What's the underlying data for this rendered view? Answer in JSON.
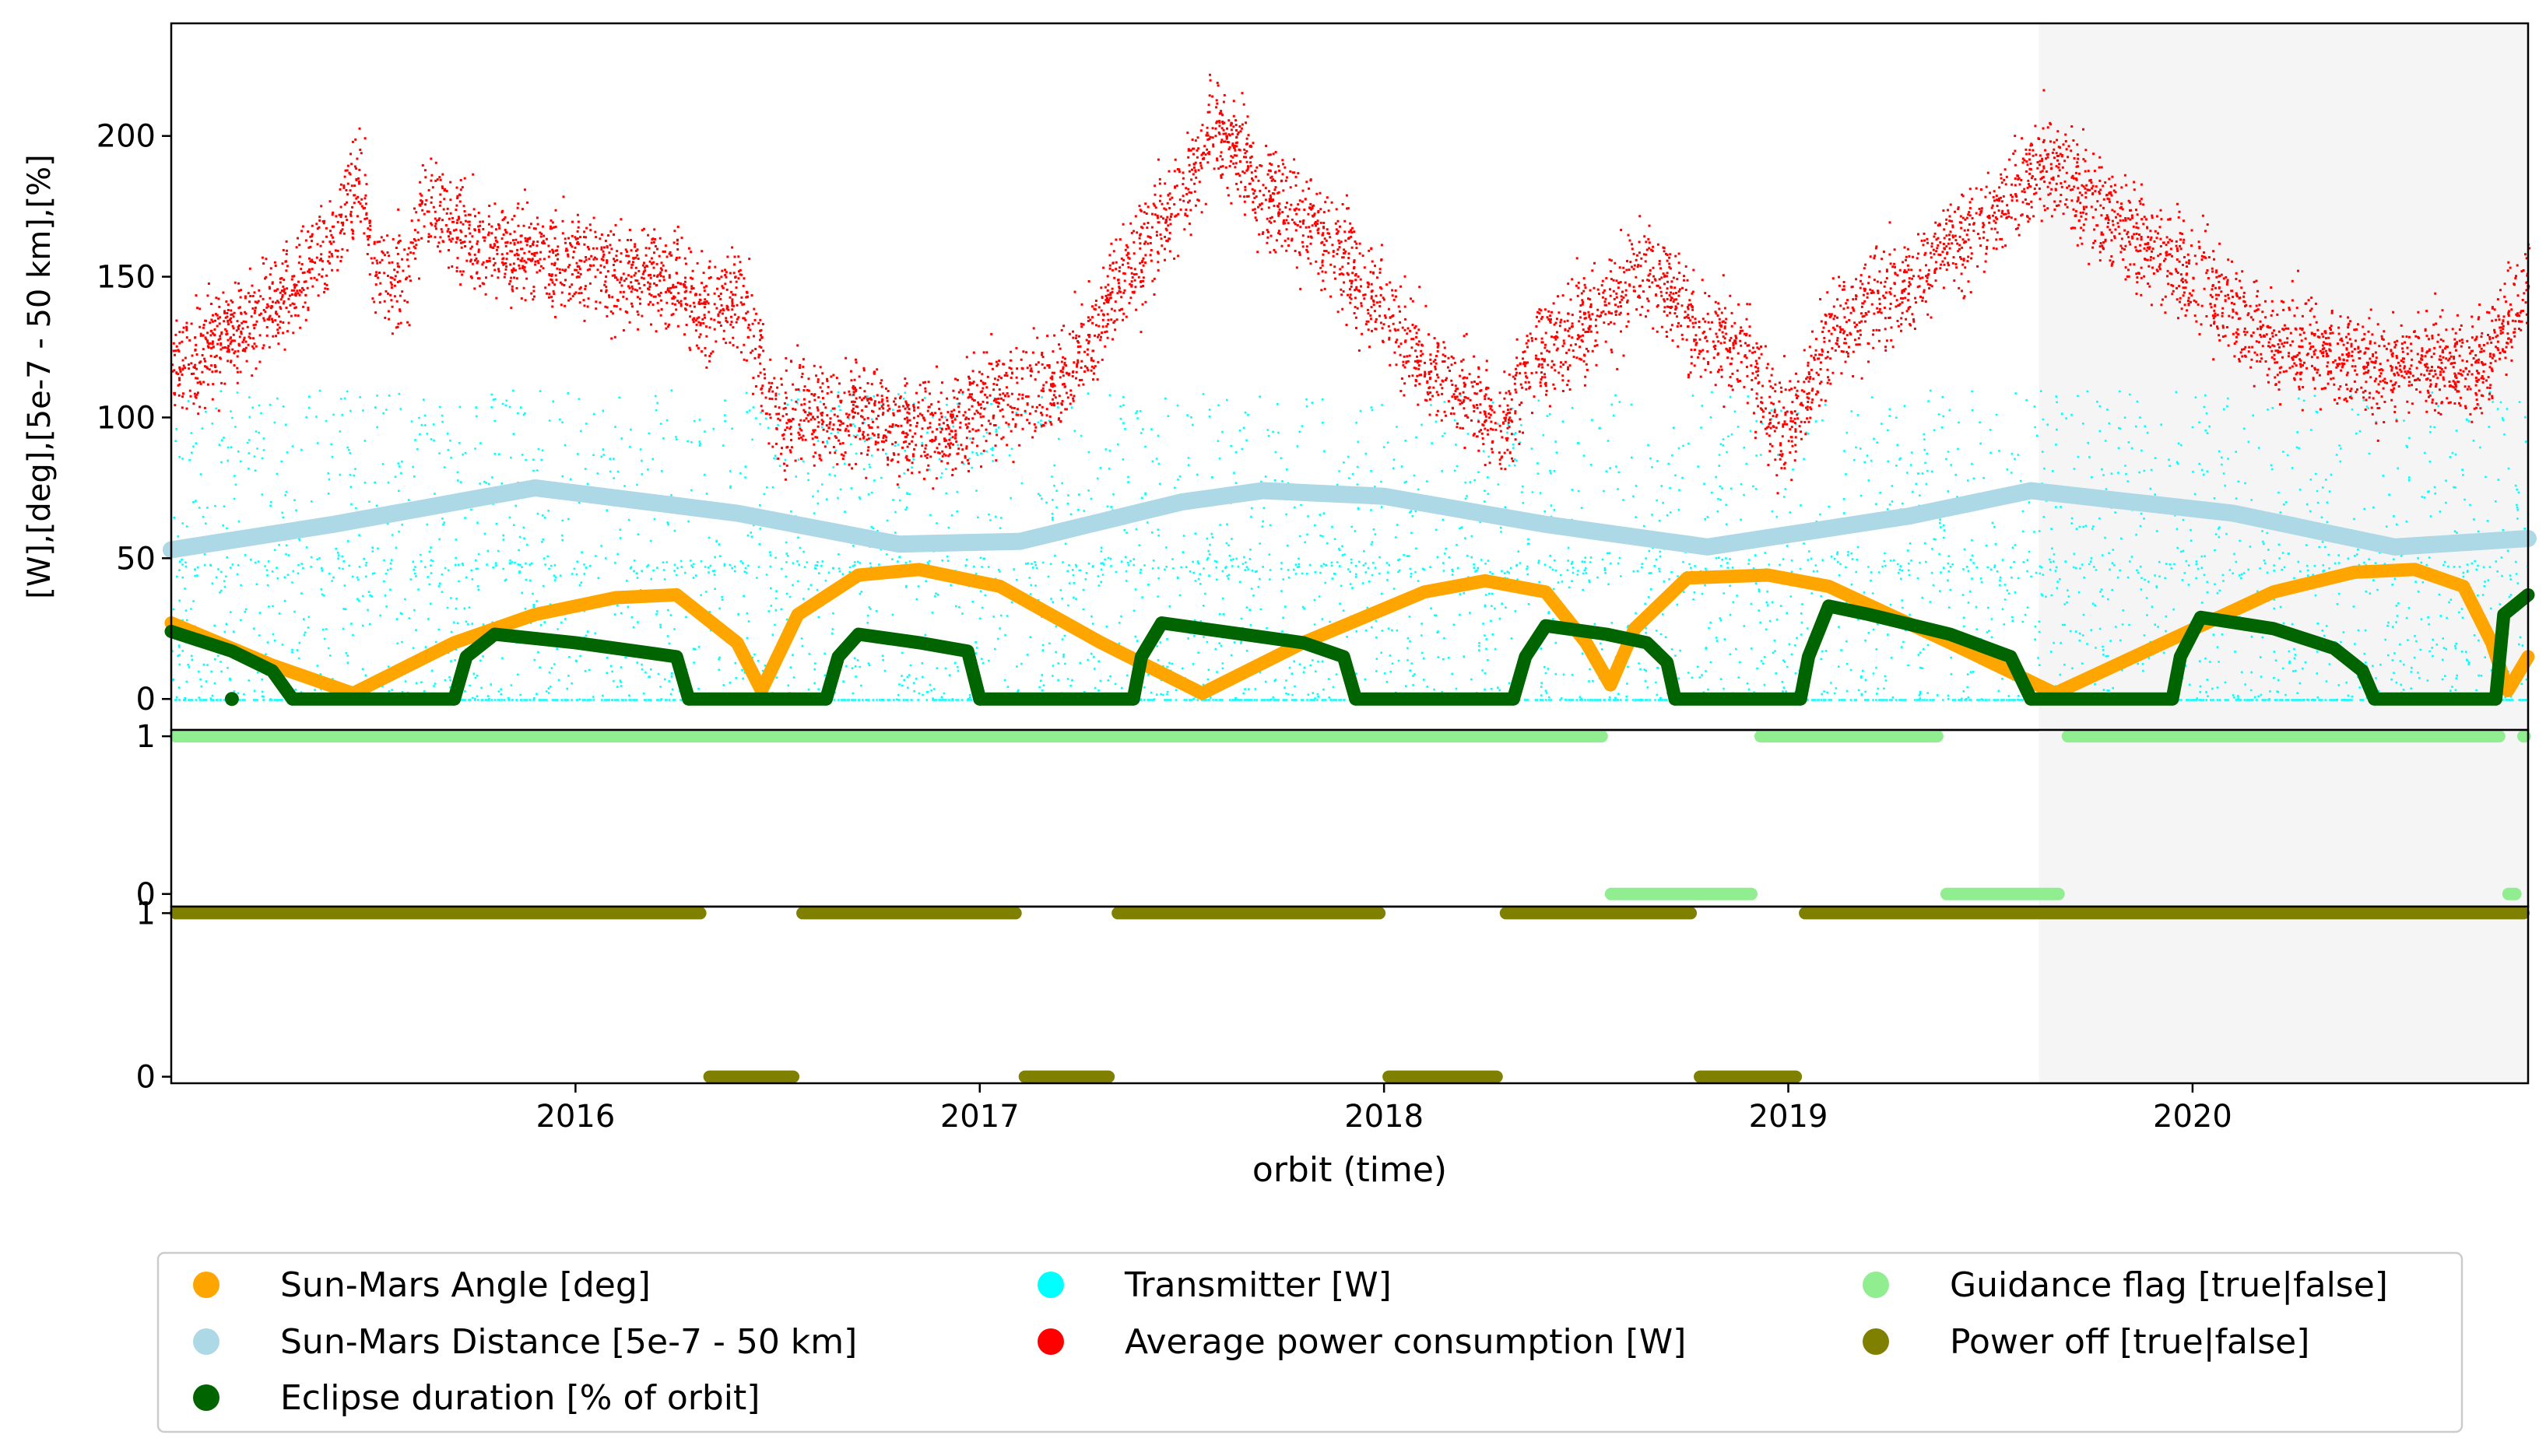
{
  "chart_data": {
    "type": "scatter",
    "x_ticks": [
      "2016",
      "2017",
      "2018",
      "2019",
      "2020"
    ],
    "x_range": [
      2015.0,
      2020.83
    ],
    "xlabel": "orbit (time)",
    "shaded_region": {
      "x_start": 2019.62,
      "x_end": 2020.83,
      "color": "#f5f5f5"
    },
    "panels": [
      {
        "id": "main",
        "ylabel": "[W],[deg],[5e-7 - 50 km],[%]",
        "ylim": [
          -11,
          240
        ],
        "y_ticks": [
          "0",
          "50",
          "100",
          "150",
          "200"
        ],
        "series": [
          {
            "name": "Transmitter [W]",
            "color": "#00ffff",
            "marker": "small-scatter",
            "description_stats": {
              "baseline": 0,
              "typical_range": [
                0,
                110
              ],
              "dense_band": 47
            }
          },
          {
            "name": "Average power consumption [W]",
            "color": "#ff0000",
            "marker": "small-scatter",
            "points": [
              [
                2015.0,
                118
              ],
              [
                2015.15,
                130
              ],
              [
                2015.3,
                145
              ],
              [
                2015.42,
                172
              ],
              [
                2015.47,
                185
              ],
              [
                2015.5,
                148
              ],
              [
                2015.58,
                150
              ],
              [
                2015.62,
                180
              ],
              [
                2015.75,
                162
              ],
              [
                2016.0,
                155
              ],
              [
                2016.25,
                148
              ],
              [
                2016.3,
                140
              ],
              [
                2016.4,
                145
              ],
              [
                2016.5,
                100
              ],
              [
                2016.7,
                102
              ],
              [
                2016.9,
                95
              ],
              [
                2017.05,
                110
              ],
              [
                2017.2,
                112
              ],
              [
                2017.35,
                150
              ],
              [
                2017.5,
                180
              ],
              [
                2017.58,
                205
              ],
              [
                2017.7,
                180
              ],
              [
                2017.85,
                165
              ],
              [
                2017.95,
                145
              ],
              [
                2018.1,
                120
              ],
              [
                2018.3,
                95
              ],
              [
                2018.35,
                120
              ],
              [
                2018.5,
                135
              ],
              [
                2018.65,
                155
              ],
              [
                2018.75,
                135
              ],
              [
                2018.9,
                125
              ],
              [
                2018.97,
                95
              ],
              [
                2019.02,
                100
              ],
              [
                2019.1,
                130
              ],
              [
                2019.3,
                150
              ],
              [
                2019.5,
                172
              ],
              [
                2019.62,
                192
              ],
              [
                2019.8,
                170
              ],
              [
                2020.0,
                150
              ],
              [
                2020.2,
                128
              ],
              [
                2020.4,
                120
              ],
              [
                2020.55,
                118
              ],
              [
                2020.72,
                120
              ],
              [
                2020.83,
                148
              ]
            ]
          },
          {
            "name": "Sun-Mars Distance [5e-7 - 50 km]",
            "color": "#add8e6",
            "marker": "thick-line",
            "points": [
              [
                2015.0,
                53
              ],
              [
                2015.4,
                62
              ],
              [
                2015.9,
                75
              ],
              [
                2016.4,
                66
              ],
              [
                2016.8,
                55
              ],
              [
                2017.1,
                56
              ],
              [
                2017.5,
                70
              ],
              [
                2017.7,
                74
              ],
              [
                2018.0,
                72
              ],
              [
                2018.4,
                62
              ],
              [
                2018.8,
                54
              ],
              [
                2019.3,
                65
              ],
              [
                2019.6,
                74
              ],
              [
                2020.1,
                66
              ],
              [
                2020.5,
                54
              ],
              [
                2020.83,
                57
              ]
            ]
          },
          {
            "name": "Sun-Mars Angle [deg]",
            "color": "#ffa500",
            "marker": "thick-line",
            "points": [
              [
                2015.0,
                27
              ],
              [
                2015.25,
                12
              ],
              [
                2015.45,
                2
              ],
              [
                2015.7,
                20
              ],
              [
                2015.9,
                30
              ],
              [
                2016.1,
                36
              ],
              [
                2016.25,
                37
              ],
              [
                2016.4,
                20
              ],
              [
                2016.46,
                3
              ],
              [
                2016.55,
                30
              ],
              [
                2016.7,
                44
              ],
              [
                2016.85,
                46
              ],
              [
                2017.05,
                40
              ],
              [
                2017.3,
                20
              ],
              [
                2017.55,
                2
              ],
              [
                2017.8,
                20
              ],
              [
                2018.1,
                38
              ],
              [
                2018.25,
                42
              ],
              [
                2018.4,
                38
              ],
              [
                2018.5,
                20
              ],
              [
                2018.56,
                5
              ],
              [
                2018.62,
                25
              ],
              [
                2018.75,
                43
              ],
              [
                2018.95,
                44
              ],
              [
                2019.1,
                40
              ],
              [
                2019.4,
                20
              ],
              [
                2019.66,
                2
              ],
              [
                2019.9,
                18
              ],
              [
                2020.2,
                38
              ],
              [
                2020.4,
                45
              ],
              [
                2020.55,
                46
              ],
              [
                2020.67,
                40
              ],
              [
                2020.74,
                20
              ],
              [
                2020.78,
                3
              ],
              [
                2020.83,
                15
              ]
            ]
          },
          {
            "name": "Eclipse duration [% of orbit]",
            "color": "#006400",
            "marker": "thick-line",
            "segments": [
              [
                [
                  2015.0,
                  24
                ],
                [
                  2015.15,
                  17
                ],
                [
                  2015.25,
                  10
                ],
                [
                  2015.3,
                  0
                ]
              ],
              [
                [
                  2015.3,
                  0
                ],
                [
                  2015.7,
                  0
                ]
              ],
              [
                [
                  2015.7,
                  0
                ],
                [
                  2015.73,
                  15
                ],
                [
                  2015.8,
                  23
                ],
                [
                  2016.0,
                  20
                ],
                [
                  2016.15,
                  17
                ],
                [
                  2016.25,
                  15
                ],
                [
                  2016.28,
                  0
                ]
              ],
              [
                [
                  2016.28,
                  0
                ],
                [
                  2016.62,
                  0
                ]
              ],
              [
                [
                  2016.62,
                  0
                ],
                [
                  2016.65,
                  15
                ],
                [
                  2016.7,
                  23
                ],
                [
                  2016.85,
                  20
                ],
                [
                  2016.97,
                  17
                ],
                [
                  2017.0,
                  0
                ]
              ],
              [
                [
                  2017.0,
                  0
                ],
                [
                  2017.38,
                  0
                ]
              ],
              [
                [
                  2017.38,
                  0
                ],
                [
                  2017.4,
                  15
                ],
                [
                  2017.45,
                  27
                ],
                [
                  2017.65,
                  23
                ],
                [
                  2017.8,
                  20
                ],
                [
                  2017.9,
                  15
                ],
                [
                  2017.93,
                  0
                ]
              ],
              [
                [
                  2017.93,
                  0
                ],
                [
                  2018.32,
                  0
                ]
              ],
              [
                [
                  2018.32,
                  0
                ],
                [
                  2018.35,
                  15
                ],
                [
                  2018.4,
                  26
                ],
                [
                  2018.55,
                  23
                ],
                [
                  2018.65,
                  20
                ],
                [
                  2018.7,
                  13
                ],
                [
                  2018.72,
                  0
                ]
              ],
              [
                [
                  2018.72,
                  0
                ],
                [
                  2019.03,
                  0
                ]
              ],
              [
                [
                  2019.03,
                  0
                ],
                [
                  2019.05,
                  15
                ],
                [
                  2019.1,
                  33
                ],
                [
                  2019.2,
                  30
                ],
                [
                  2019.4,
                  23
                ],
                [
                  2019.55,
                  15
                ],
                [
                  2019.6,
                  0
                ]
              ],
              [
                [
                  2019.6,
                  0
                ],
                [
                  2019.95,
                  0
                ]
              ],
              [
                [
                  2019.95,
                  0
                ],
                [
                  2019.97,
                  15
                ],
                [
                  2020.02,
                  29
                ],
                [
                  2020.2,
                  25
                ],
                [
                  2020.35,
                  18
                ],
                [
                  2020.42,
                  10
                ],
                [
                  2020.45,
                  0
                ]
              ],
              [
                [
                  2020.45,
                  0
                ],
                [
                  2020.75,
                  0
                ]
              ],
              [
                [
                  2020.75,
                  0
                ],
                [
                  2020.77,
                  30
                ],
                [
                  2020.83,
                  37
                ]
              ]
            ],
            "isolated_points": [
              [
                2015.15,
                0
              ]
            ]
          }
        ]
      },
      {
        "id": "guidance",
        "ylim": [
          -0.08,
          1.04
        ],
        "y_ticks": [
          "0",
          "1"
        ],
        "series": [
          {
            "name": "Guidance flag [true|false]",
            "color": "#90ee90",
            "marker": "thick-segments",
            "segments": [
              {
                "value": 1,
                "x": [
                  2015.0,
                  2018.55
                ]
              },
              {
                "value": 0,
                "x": [
                  2018.55,
                  2018.92
                ]
              },
              {
                "value": 1,
                "x": [
                  2018.92,
                  2019.38
                ]
              },
              {
                "value": 0,
                "x": [
                  2019.38,
                  2019.68
                ]
              },
              {
                "value": 1,
                "x": [
                  2019.68,
                  2020.77
                ]
              },
              {
                "value": 0,
                "x": [
                  2020.77,
                  2020.81
                ]
              },
              {
                "value": 1,
                "x": [
                  2020.81,
                  2020.83
                ]
              }
            ]
          }
        ]
      },
      {
        "id": "power_off",
        "ylim": [
          -0.04,
          1.04
        ],
        "y_ticks": [
          "0",
          "1"
        ],
        "series": [
          {
            "name": "Power off [true|false]",
            "color": "#808000",
            "marker": "thick-segments",
            "segments": [
              {
                "value": 1,
                "x": [
                  2015.0,
                  2016.32
                ]
              },
              {
                "value": 0,
                "x": [
                  2016.32,
                  2016.55
                ]
              },
              {
                "value": 1,
                "x": [
                  2016.55,
                  2017.1
                ]
              },
              {
                "value": 0,
                "x": [
                  2017.1,
                  2017.33
                ]
              },
              {
                "value": 1,
                "x": [
                  2017.33,
                  2018.0
                ]
              },
              {
                "value": 0,
                "x": [
                  2018.0,
                  2018.29
                ]
              },
              {
                "value": 1,
                "x": [
                  2018.29,
                  2018.77
                ]
              },
              {
                "value": 0,
                "x": [
                  2018.77,
                  2019.03
                ]
              },
              {
                "value": 1,
                "x": [
                  2019.03,
                  2020.83
                ]
              }
            ]
          }
        ]
      }
    ],
    "legend": {
      "placement": "bottom-center",
      "columns": [
        [
          "Sun-Mars Angle [deg]",
          "Sun-Mars Distance [5e-7 - 50 km]",
          "Eclipse duration [% of orbit]"
        ],
        [
          "Transmitter [W]",
          "Average power consumption [W]"
        ],
        [
          "Guidance flag [true|false]",
          "Power off [true|false]"
        ]
      ]
    }
  }
}
